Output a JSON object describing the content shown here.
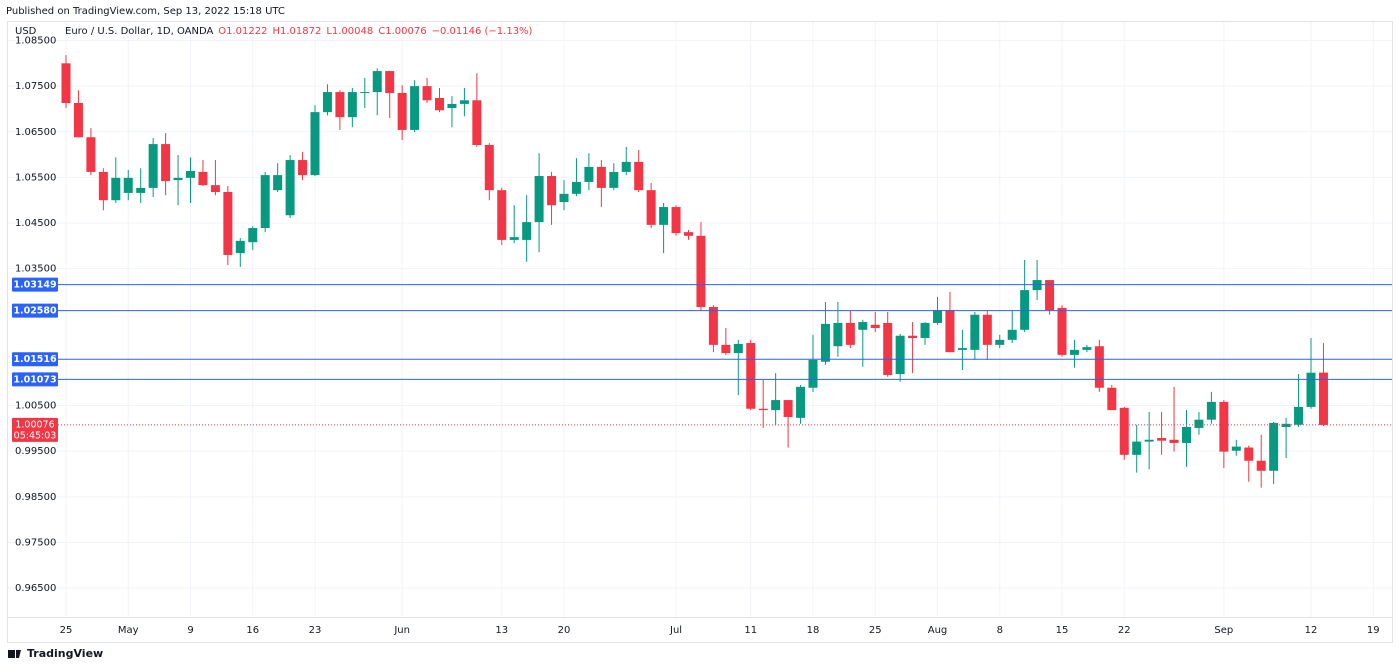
{
  "header": "Published on TradingView.com, Sep 13, 2022 15:18 UTC",
  "footer": "TradingView",
  "chart_data": {
    "type": "candlestick",
    "currency": "USD",
    "symbol": "Euro / U.S. Dollar, 1D, OANDA",
    "ohlc_legend": [
      "O1.01222",
      "H1.01872",
      "L1.00048",
      "C1.00076",
      "−0.01146 (−1.13%)"
    ],
    "up_color": "#089981",
    "down_color": "#f23645",
    "level_color": "#2962ff",
    "grid": true,
    "categories": [
      "25",
      null,
      null,
      null,
      null,
      "May",
      null,
      null,
      null,
      null,
      "9",
      null,
      null,
      null,
      null,
      "16",
      null,
      null,
      null,
      null,
      "23",
      null,
      null,
      null,
      null,
      null,
      null,
      "Jun",
      null,
      null,
      null,
      null,
      null,
      null,
      null,
      "13",
      null,
      null,
      null,
      null,
      "20",
      null,
      null,
      null,
      null,
      null,
      null,
      null,
      null,
      "Jul",
      null,
      null,
      null,
      null,
      null,
      "11",
      null,
      null,
      null,
      null,
      "18",
      null,
      null,
      null,
      null,
      "25",
      null,
      null,
      null,
      null,
      "Aug",
      null,
      null,
      null,
      null,
      "8",
      null,
      null,
      null,
      null,
      "15",
      null,
      null,
      null,
      null,
      "22",
      null,
      null,
      null,
      null,
      null,
      null,
      null,
      "Sep",
      null,
      null,
      null,
      null,
      null,
      null,
      "12",
      null,
      null,
      null,
      null,
      "19"
    ],
    "open": [
      1.08,
      1.0713,
      1.0638,
      1.0562,
      1.05,
      1.0516,
      1.0516,
      1.0527,
      1.0623,
      1.0544,
      1.0549,
      1.0562,
      1.0533,
      1.0518,
      1.0384,
      1.0408,
      1.0439,
      1.0522,
      1.0467,
      1.0588,
      1.0555,
      1.0693,
      1.0737,
      1.0682,
      1.0735,
      1.0737,
      1.0783,
      1.0735,
      1.0654,
      1.075,
      1.0724,
      1.0702,
      1.0711,
      1.0719,
      1.0621,
      1.0522,
      1.0413,
      1.0413,
      1.0452,
      1.0553,
      1.0496,
      1.0514,
      1.054,
      1.0573,
      1.0527,
      1.0562,
      1.0584,
      1.0522,
      1.0446,
      1.0485,
      1.043,
      1.0422,
      1.0266,
      1.0183,
      1.0165,
      1.0187,
      1.0043,
      1.004,
      1.0062,
      1.0023,
      1.0089,
      1.0146,
      1.018,
      1.0231,
      1.0216,
      1.0227,
      1.0231,
      1.0119,
      1.0203,
      1.0198,
      1.0231,
      1.0259,
      1.0172,
      1.0172,
      1.0249,
      1.0183,
      1.0194,
      1.0216,
      1.0303,
      1.0325,
      1.0264,
      1.0161,
      1.0172,
      1.018,
      1.0089,
      1.0045,
      0.9942,
      0.9971,
      0.9979,
      0.9975,
      0.9968,
      1.0001,
      1.0019,
      1.0058,
      0.9951,
      0.9958,
      0.9929,
      0.9907,
      1.0003,
      1.0008,
      1.0047,
      1.01222,
      null,
      null,
      null,
      null
    ],
    "high": [
      1.0818,
      1.0741,
      1.0658,
      1.057,
      1.0594,
      1.0566,
      1.057,
      1.0636,
      1.0647,
      1.0599,
      1.0594,
      1.0588,
      1.0588,
      1.0531,
      1.0417,
      1.0443,
      1.0562,
      1.0581,
      1.0599,
      1.0606,
      1.0708,
      1.0754,
      1.0741,
      1.0746,
      1.0768,
      1.0789,
      1.0783,
      1.0752,
      1.0763,
      1.0768,
      1.0746,
      1.0728,
      1.0746,
      1.0778,
      1.0625,
      1.0527,
      1.0489,
      1.0511,
      1.0603,
      1.0562,
      1.0544,
      1.0592,
      1.0603,
      1.0588,
      1.0581,
      1.0617,
      1.061,
      1.0538,
      1.0494,
      1.0489,
      1.0435,
      1.0452,
      1.027,
      1.022,
      1.0194,
      1.0194,
      1.0106,
      1.0121,
      1.0062,
      1.0095,
      1.0205,
      1.0277,
      1.0277,
      1.0259,
      1.0238,
      1.0255,
      1.0255,
      1.0207,
      1.0233,
      1.0233,
      1.0288,
      1.0299,
      1.0216,
      1.0255,
      1.0259,
      1.0205,
      1.0259,
      1.0369,
      1.0369,
      1.0325,
      1.027,
      1.0194,
      1.0183,
      1.0194,
      1.0095,
      1.0047,
      1.0008,
      1.0036,
      1.0036,
      1.0091,
      1.004,
      1.0036,
      1.008,
      1.0062,
      0.9975,
      0.9962,
      0.9986,
      1.0014,
      1.0023,
      1.0119,
      1.0198,
      1.01872,
      null,
      null,
      null,
      null
    ],
    "low": [
      1.0702,
      1.0638,
      1.0555,
      1.0478,
      1.0494,
      1.05,
      1.0494,
      1.0507,
      1.0511,
      1.0489,
      1.0494,
      1.0531,
      1.0511,
      1.0358,
      1.0354,
      1.0391,
      1.043,
      1.0518,
      1.0461,
      1.0544,
      1.0553,
      1.0686,
      1.0654,
      1.066,
      1.0702,
      1.0686,
      1.068,
      1.0632,
      1.0649,
      1.0713,
      1.0693,
      1.066,
      1.0684,
      1.0617,
      1.05,
      1.0402,
      1.0406,
      1.0365,
      1.0386,
      1.0446,
      1.0478,
      1.0509,
      1.0522,
      1.0485,
      1.0522,
      1.0555,
      1.0518,
      1.0439,
      1.0384,
      1.0422,
      1.0413,
      1.0259,
      1.0167,
      1.0161,
      1.0073,
      1.004,
      1.0001,
      1.0008,
      0.9958,
      1.001,
      1.008,
      1.0139,
      1.0157,
      1.0176,
      1.0135,
      1.0211,
      1.0113,
      1.0102,
      1.0121,
      1.0183,
      1.0227,
      1.0167,
      1.0128,
      1.015,
      1.015,
      1.0176,
      1.0187,
      1.0211,
      1.0281,
      1.0249,
      1.0157,
      1.0133,
      1.0167,
      1.008,
      1.004,
      0.9931,
      0.9903,
      0.991,
      0.9942,
      0.9949,
      0.9916,
      0.9986,
      1.001,
      0.9913,
      0.994,
      0.9883,
      0.987,
      0.9878,
      0.9935,
      1.0003,
      1.0043,
      1.00048,
      null,
      null,
      null,
      null
    ],
    "close": [
      1.0713,
      1.0638,
      1.0562,
      1.05,
      1.0549,
      1.0549,
      1.0527,
      1.0623,
      1.0542,
      1.0549,
      1.0564,
      1.0533,
      1.0518,
      1.038,
      1.0411,
      1.0439,
      1.0555,
      1.0555,
      1.0588,
      1.0555,
      1.0693,
      1.0737,
      1.0682,
      1.0737,
      1.0737,
      1.0783,
      1.0735,
      1.0654,
      1.075,
      1.0719,
      1.0697,
      1.0711,
      1.0719,
      1.0621,
      1.0522,
      1.0413,
      1.0419,
      1.0452,
      1.0553,
      1.0489,
      1.0514,
      1.054,
      1.0573,
      1.0527,
      1.0562,
      1.0584,
      1.0522,
      1.0446,
      1.0485,
      1.0428,
      1.0422,
      1.0266,
      1.0183,
      1.0165,
      1.0185,
      1.0043,
      1.004,
      1.0062,
      1.0025,
      1.0091,
      1.015,
      1.0229,
      1.0231,
      1.0183,
      1.0233,
      1.022,
      1.0117,
      1.0203,
      1.0198,
      1.0231,
      1.0259,
      1.0167,
      1.0176,
      1.0249,
      1.0183,
      1.0194,
      1.0216,
      1.0303,
      1.0325,
      1.0259,
      1.0161,
      1.0172,
      1.0178,
      1.0089,
      1.004,
      0.9942,
      0.9971,
      0.9975,
      0.9973,
      0.9968,
      1.0003,
      1.0019,
      1.0058,
      0.9949,
      0.996,
      0.9929,
      0.9907,
      1.0012,
      1.001,
      1.0047,
      1.0122,
      1.00076,
      null,
      null,
      null,
      null
    ],
    "ylim": [
      0.9591,
      1.0873
    ],
    "yticks": [
      {
        "value": 0.965,
        "label": "0.96500"
      },
      {
        "value": 0.975,
        "label": "0.97500"
      },
      {
        "value": 0.985,
        "label": "0.98500"
      },
      {
        "value": 0.995,
        "label": "0.99500"
      },
      {
        "value": 1.005,
        "label": "1.00500"
      },
      {
        "value": 1.035,
        "label": "1.03500"
      },
      {
        "value": 1.045,
        "label": "1.04500"
      },
      {
        "value": 1.055,
        "label": "1.05500"
      },
      {
        "value": 1.065,
        "label": "1.06500"
      },
      {
        "value": 1.075,
        "label": "1.07500"
      },
      {
        "value": 1.085,
        "label": "1.08500"
      }
    ],
    "levels": [
      1.03149,
      {
        "value": 1.0258,
        "label": "1.02580"
      },
      1.01516,
      1.01073
    ],
    "last_price": 1.00076,
    "countdown": "05:45:03"
  }
}
